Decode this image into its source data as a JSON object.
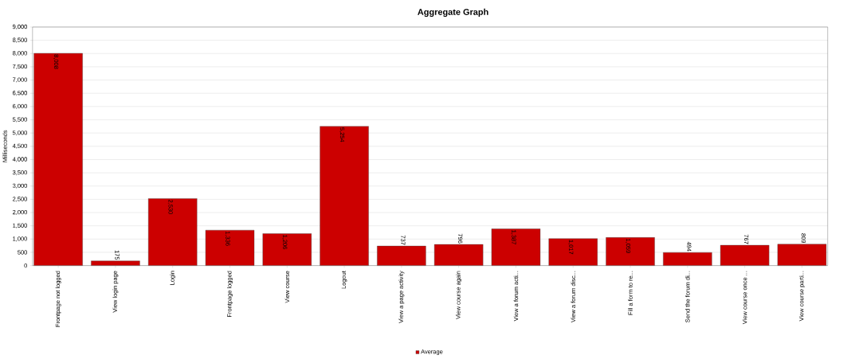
{
  "chart_data": {
    "type": "bar",
    "title": "Aggregate Graph",
    "ylabel": "Milliseconds",
    "categories": [
      "Frontpage not logged",
      "View login page",
      "Login",
      "Frontpage logged",
      "View course",
      "Logout",
      "View a page activity",
      "View course again",
      "View a forum acti...",
      "View a forum disc...",
      "Fill a form to re...",
      "Send the forum di...",
      "View course once ...",
      "View course parti..."
    ],
    "series": [
      {
        "name": "Average",
        "color": "#cc0000",
        "values": [
          8008,
          175,
          2530,
          1336,
          1206,
          5254,
          737,
          796,
          1387,
          1017,
          1059,
          494,
          767,
          809
        ],
        "value_labels": [
          "8,008",
          "175",
          "2,530",
          "1,336",
          "1,206",
          "5,254",
          "737",
          "796",
          "1,387",
          "1,017",
          "1,059",
          "494",
          "767",
          "809"
        ]
      }
    ],
    "ylim": [
      0,
      9000
    ],
    "yticks": [
      0,
      500,
      {
        "value": 1000,
        "label": "1,000"
      },
      {
        "value": 1500,
        "label": "1,500"
      },
      {
        "value": 2000,
        "label": "2,000"
      },
      {
        "value": 2500,
        "label": "2,500"
      },
      {
        "value": 3000,
        "label": "3,000"
      },
      {
        "value": 3500,
        "label": "3,500"
      },
      {
        "value": 4000,
        "label": "4,000"
      },
      {
        "value": 4500,
        "label": "4,500"
      },
      {
        "value": 5000,
        "label": "5,000"
      },
      {
        "value": 5500,
        "label": "5,500"
      },
      {
        "value": 6000,
        "label": "6,000"
      },
      {
        "value": 6500,
        "label": "6,500"
      },
      {
        "value": 7000,
        "label": "7,000"
      },
      {
        "value": 7500,
        "label": "7,500"
      },
      {
        "value": 8000,
        "label": "8,000"
      },
      {
        "value": 8500,
        "label": "8,500"
      },
      {
        "value": 9000,
        "label": "9,000"
      }
    ],
    "grid": "y",
    "legend": "bottom"
  }
}
